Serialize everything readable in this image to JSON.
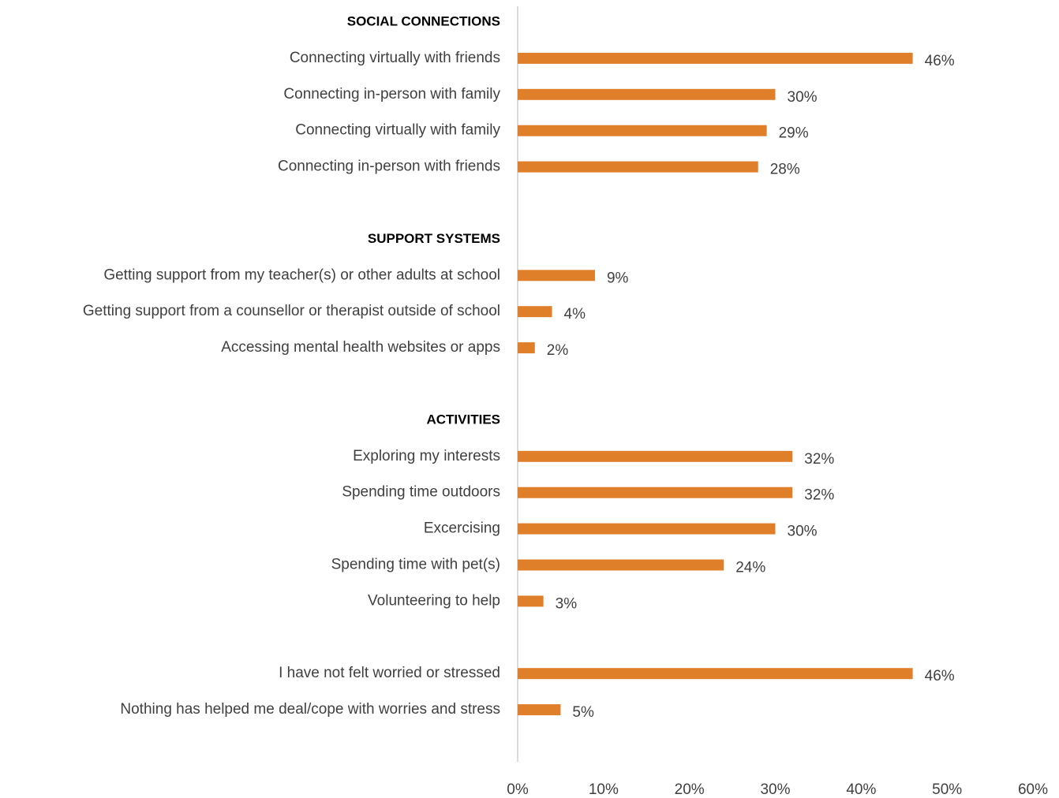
{
  "chart_data": {
    "type": "bar",
    "orientation": "horizontal",
    "categories": [
      "SOCIAL CONNECTIONS",
      "Connecting virtually with friends",
      "Connecting in-person with family",
      "Connecting virtually with family",
      "Connecting in-person with friends",
      null,
      "SUPPORT SYSTEMS",
      "Getting support from my teacher(s) or other adults at school",
      "Getting support from a counsellor or therapist outside of school",
      "Accessing mental health websites or apps",
      null,
      "ACTIVITIES",
      "Exploring my interests",
      "Spending time outdoors",
      "Excercising",
      "Spending time with pet(s)",
      "Volunteering to help",
      null,
      "I have not felt worried or stressed",
      "Nothing has helped me deal/cope with worries and stress"
    ],
    "values": [
      null,
      46,
      30,
      29,
      28,
      null,
      null,
      9,
      4,
      2,
      null,
      null,
      32,
      32,
      30,
      24,
      3,
      null,
      46,
      5
    ],
    "value_labels": [
      null,
      "46%",
      "30%",
      "29%",
      "28%",
      null,
      null,
      "9%",
      "4%",
      "2%",
      null,
      null,
      "32%",
      "32%",
      "30%",
      "24%",
      "3%",
      null,
      "46%",
      "5%"
    ],
    "color": "#e07f2a",
    "xlim": [
      0,
      60
    ],
    "xticks": [
      {
        "value": 0,
        "label": "0%"
      },
      {
        "value": 10,
        "label": "10%"
      },
      {
        "value": 20,
        "label": "20%"
      },
      {
        "value": 30,
        "label": "30%"
      },
      {
        "value": 40,
        "label": "40%"
      },
      {
        "value": 50,
        "label": "50%"
      },
      {
        "value": 60,
        "label": "60%"
      }
    ],
    "grid": false
  }
}
